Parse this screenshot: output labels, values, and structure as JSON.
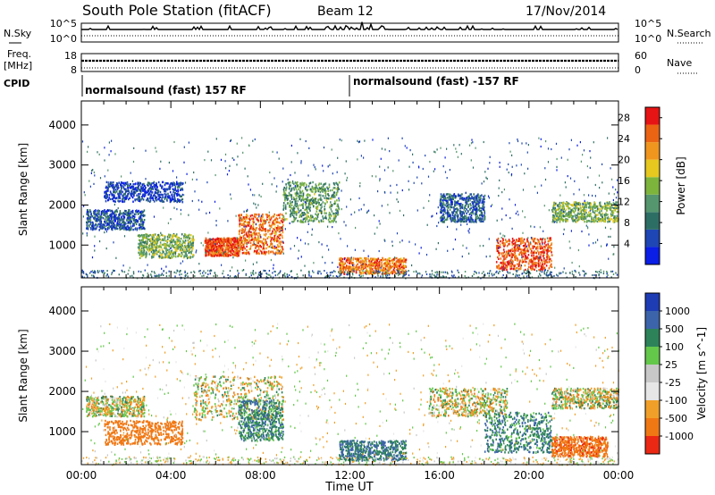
{
  "header": {
    "station": "South Pole Station (fitACF)",
    "beam": "Beam 12",
    "date": "17/Nov/2014"
  },
  "noise_panel": {
    "left_label": "N.Sky",
    "right_label": "N.Search",
    "ticks": [
      "10^5",
      "10^0"
    ]
  },
  "freq_panel": {
    "left_label": "Freq.",
    "left_unit": "[MHz]",
    "left_ticks": [
      "18",
      "8"
    ],
    "right_label": "Nave",
    "right_ticks": [
      "60",
      "0"
    ]
  },
  "cpid_panel": {
    "label": "CPID",
    "segments": [
      "normalsound (fast) 157 RF",
      "normalsound (fast) -157 RF"
    ]
  },
  "colors": {
    "power_scale": [
      "#0a1ee6",
      "#1e46b4",
      "#2d6e64",
      "#55966e",
      "#7db43c",
      "#e6c81e",
      "#f0961e",
      "#eb6414",
      "#e61414"
    ],
    "velocity_scale": [
      "#1e3cb4",
      "#3c64aa",
      "#2d825a",
      "#64c84b",
      "#c8c8c8",
      "#e6e6e6",
      "#f0a028",
      "#f07814",
      "#eb2814"
    ]
  },
  "chart_data": [
    {
      "type": "heatmap",
      "title": "Power",
      "xlabel": "Time UT",
      "ylabel": "Slant Range [km]",
      "x_ticks": [
        "00:00",
        "04:00",
        "08:00",
        "12:00",
        "16:00",
        "20:00",
        "00:00"
      ],
      "xlim": [
        0,
        24
      ],
      "y_ticks": [
        1000,
        2000,
        3000,
        4000
      ],
      "ylim": [
        180,
        4600
      ],
      "colorbar": {
        "label": "Power [dB]",
        "ticks": [
          4,
          8,
          12,
          16,
          20,
          24,
          28
        ],
        "range": [
          0,
          30
        ]
      },
      "echo_regions": [
        {
          "t": [
            0.2,
            2.8
          ],
          "r": [
            1400,
            1900
          ],
          "level": 6
        },
        {
          "t": [
            1.0,
            4.5
          ],
          "r": [
            2100,
            2600
          ],
          "level": 4
        },
        {
          "t": [
            2.5,
            5.0
          ],
          "r": [
            700,
            1300
          ],
          "level": 14
        },
        {
          "t": [
            5.5,
            7.0
          ],
          "r": [
            750,
            1200
          ],
          "level": 26
        },
        {
          "t": [
            7.0,
            9.0
          ],
          "r": [
            800,
            1800
          ],
          "level": 24
        },
        {
          "t": [
            9.0,
            11.5
          ],
          "r": [
            1600,
            2600
          ],
          "level": 12
        },
        {
          "t": [
            11.5,
            14.5
          ],
          "r": [
            300,
            700
          ],
          "level": 24
        },
        {
          "t": [
            16.0,
            18.0
          ],
          "r": [
            1600,
            2300
          ],
          "level": 7
        },
        {
          "t": [
            18.5,
            21.0
          ],
          "r": [
            400,
            1200
          ],
          "level": 26
        },
        {
          "t": [
            21.0,
            24.0
          ],
          "r": [
            1600,
            2100
          ],
          "level": 14
        }
      ]
    },
    {
      "type": "heatmap",
      "title": "Velocity",
      "xlabel": "Time UT",
      "ylabel": "Slant Range [km]",
      "x_ticks": [
        "00:00",
        "04:00",
        "08:00",
        "12:00",
        "16:00",
        "20:00",
        "00:00"
      ],
      "xlim": [
        0,
        24
      ],
      "y_ticks": [
        1000,
        2000,
        3000,
        4000
      ],
      "ylim": [
        180,
        4600
      ],
      "colorbar": {
        "label": "Velocity [m s^-1]",
        "ticks": [
          1000,
          500,
          100,
          25,
          -25,
          -100,
          -500,
          -1000
        ]
      },
      "echo_regions": [
        {
          "t": [
            0.2,
            2.8
          ],
          "r": [
            1400,
            1900
          ],
          "velocity": 0
        },
        {
          "t": [
            1.0,
            4.5
          ],
          "r": [
            700,
            1300
          ],
          "velocity": -300
        },
        {
          "t": [
            5.0,
            9.0
          ],
          "r": [
            1300,
            2400
          ],
          "velocity": 0
        },
        {
          "t": [
            7.0,
            9.0
          ],
          "r": [
            800,
            1800
          ],
          "velocity": 200
        },
        {
          "t": [
            11.5,
            14.5
          ],
          "r": [
            300,
            800
          ],
          "velocity": 250
        },
        {
          "t": [
            15.5,
            19.0
          ],
          "r": [
            1400,
            2100
          ],
          "velocity": 0
        },
        {
          "t": [
            18.0,
            21.0
          ],
          "r": [
            500,
            1500
          ],
          "velocity": 200
        },
        {
          "t": [
            21.0,
            23.5
          ],
          "r": [
            400,
            900
          ],
          "velocity": -400
        },
        {
          "t": [
            21.0,
            24.0
          ],
          "r": [
            1600,
            2100
          ],
          "velocity": 0
        }
      ]
    }
  ]
}
